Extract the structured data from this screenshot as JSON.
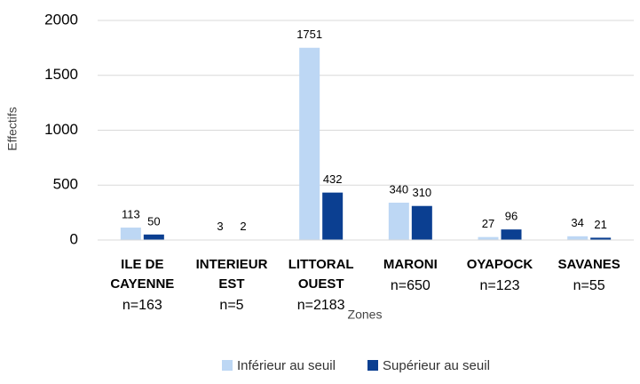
{
  "chart_data": {
    "type": "bar",
    "xlabel": "Zones",
    "ylabel": "Effectifs",
    "categories": [
      "ILE DE CAYENNE",
      "INTERIEUR EST",
      "LITTORAL OUEST",
      "MARONI",
      "OYAPOCK",
      "SAVANES"
    ],
    "category_totals": [
      "n=163",
      "n=5",
      "n=2183",
      "n=650",
      "n=123",
      "n=55"
    ],
    "series": [
      {
        "name": "Inférieur au seuil",
        "color": "#bdd7f4",
        "values": [
          113,
          3,
          1751,
          340,
          27,
          34
        ]
      },
      {
        "name": "Supérieur au seuil",
        "color": "#0b3f91",
        "values": [
          50,
          2,
          432,
          310,
          96,
          21
        ]
      }
    ],
    "ylim": [
      0,
      2000
    ],
    "yticks": [
      0,
      500,
      1000,
      1500,
      2000
    ],
    "grid": true,
    "legend": "bottom"
  }
}
